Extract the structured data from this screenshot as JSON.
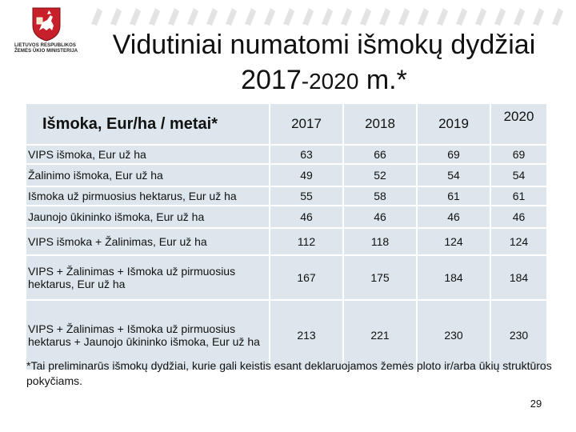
{
  "logo": {
    "org_lines": [
      "LIETUVOS RESPUBLIKOS",
      "ŽEMĖS ŪKIO MINISTERIJA"
    ]
  },
  "title": {
    "line1": "Vidutiniai numatomi išmokų dydžiai",
    "line2_year": "2017",
    "line2_range": "-2020",
    "line2_suffix": " m.*"
  },
  "table": {
    "header_label": "Išmoka, Eur/ha / metai*",
    "years": [
      "2017",
      "2018",
      "2019",
      "2020"
    ],
    "rows": [
      {
        "label": "VIPS išmoka, Eur už ha",
        "values": [
          "63",
          "66",
          "69",
          "69"
        ]
      },
      {
        "label": "Žalinimo išmoka, Eur už ha",
        "values": [
          "49",
          "52",
          "54",
          "54"
        ]
      },
      {
        "label": "Išmoka už pirmuosius hektarus, Eur už ha",
        "values": [
          "55",
          "58",
          "61",
          "61"
        ]
      },
      {
        "label": "Jaunojo ūkininko išmoka, Eur už ha",
        "values": [
          "46",
          "46",
          "46",
          "46"
        ]
      },
      {
        "label": "VIPS išmoka + Žalinimas, Eur už ha",
        "values": [
          "112",
          "118",
          "124",
          "124"
        ]
      },
      {
        "label": "VIPS + Žalinimas + Išmoka už pirmuosius hektarus, Eur už ha",
        "values": [
          "167",
          "175",
          "184",
          "184"
        ]
      },
      {
        "label": "VIPS + Žalinimas + Išmoka už pirmuosius hektarus + Jaunojo ūkininko išmoka, Eur už ha",
        "values": [
          "213",
          "221",
          "230",
          "230"
        ]
      }
    ]
  },
  "footnote": "*Tai preliminarūs išmokų dydžiai, kurie gali keistis esant deklaruojamos žemės ploto ir/arba ūkių struktūros pokyčiams.",
  "page_number": "29",
  "colors": {
    "table_cell": "#dce6ec",
    "crest_red": "#c8202a",
    "decoration": "#e3e3e3"
  }
}
